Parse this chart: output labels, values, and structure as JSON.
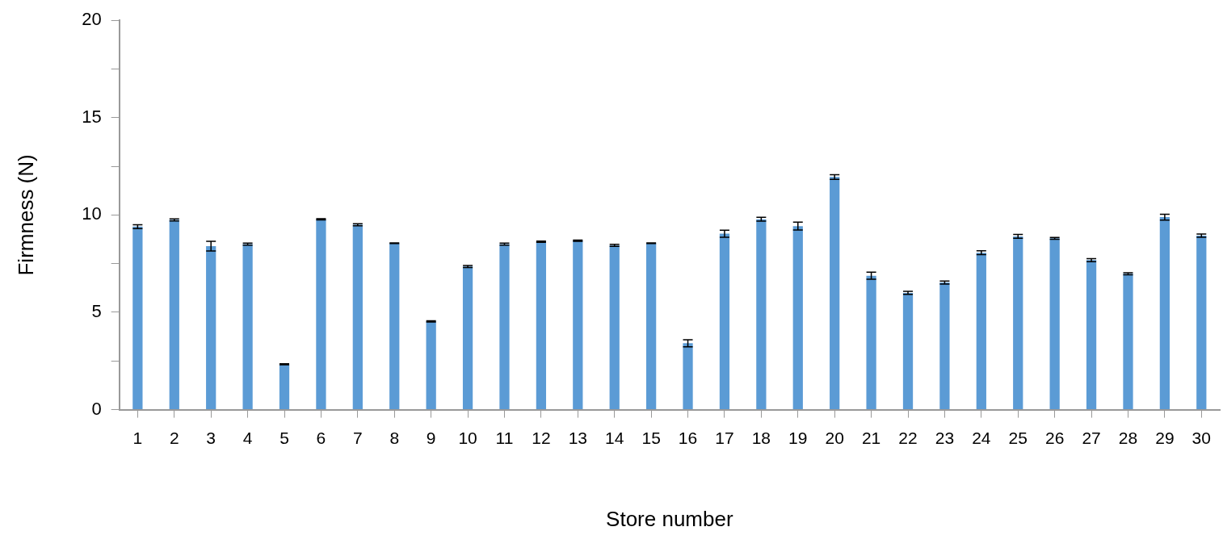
{
  "chart_data": {
    "type": "bar",
    "xlabel": "Store number",
    "ylabel": "Firmness (N)",
    "categories": [
      "1",
      "2",
      "3",
      "4",
      "5",
      "6",
      "7",
      "8",
      "9",
      "10",
      "11",
      "12",
      "13",
      "14",
      "15",
      "16",
      "17",
      "18",
      "19",
      "20",
      "21",
      "22",
      "23",
      "24",
      "25",
      "26",
      "27",
      "28",
      "29",
      "30"
    ],
    "values": [
      9.4,
      9.75,
      8.4,
      8.5,
      2.33,
      9.78,
      9.5,
      8.55,
      4.53,
      7.35,
      8.5,
      8.63,
      8.68,
      8.44,
      8.55,
      3.41,
      9.04,
      9.78,
      9.43,
      11.95,
      6.88,
      6.0,
      6.53,
      8.06,
      8.9,
      8.8,
      7.68,
      6.98,
      9.89,
      8.94
    ],
    "errors": [
      0.1,
      0.05,
      0.25,
      0.05,
      0.03,
      0.03,
      0.05,
      0.02,
      0.03,
      0.05,
      0.05,
      0.03,
      0.03,
      0.05,
      0.02,
      0.18,
      0.18,
      0.1,
      0.2,
      0.12,
      0.18,
      0.08,
      0.08,
      0.1,
      0.1,
      0.05,
      0.08,
      0.05,
      0.15,
      0.08
    ],
    "color": "#5b9bd5",
    "ylim": [
      0,
      20
    ],
    "yticks": [
      0,
      {
        "value": 2.5,
        "label": null
      },
      5,
      {
        "value": 7.5,
        "label": null
      },
      10,
      {
        "value": 12.5,
        "label": null
      },
      15,
      {
        "value": 17.5,
        "label": null
      },
      20
    ],
    "grid": false,
    "legend": false
  }
}
